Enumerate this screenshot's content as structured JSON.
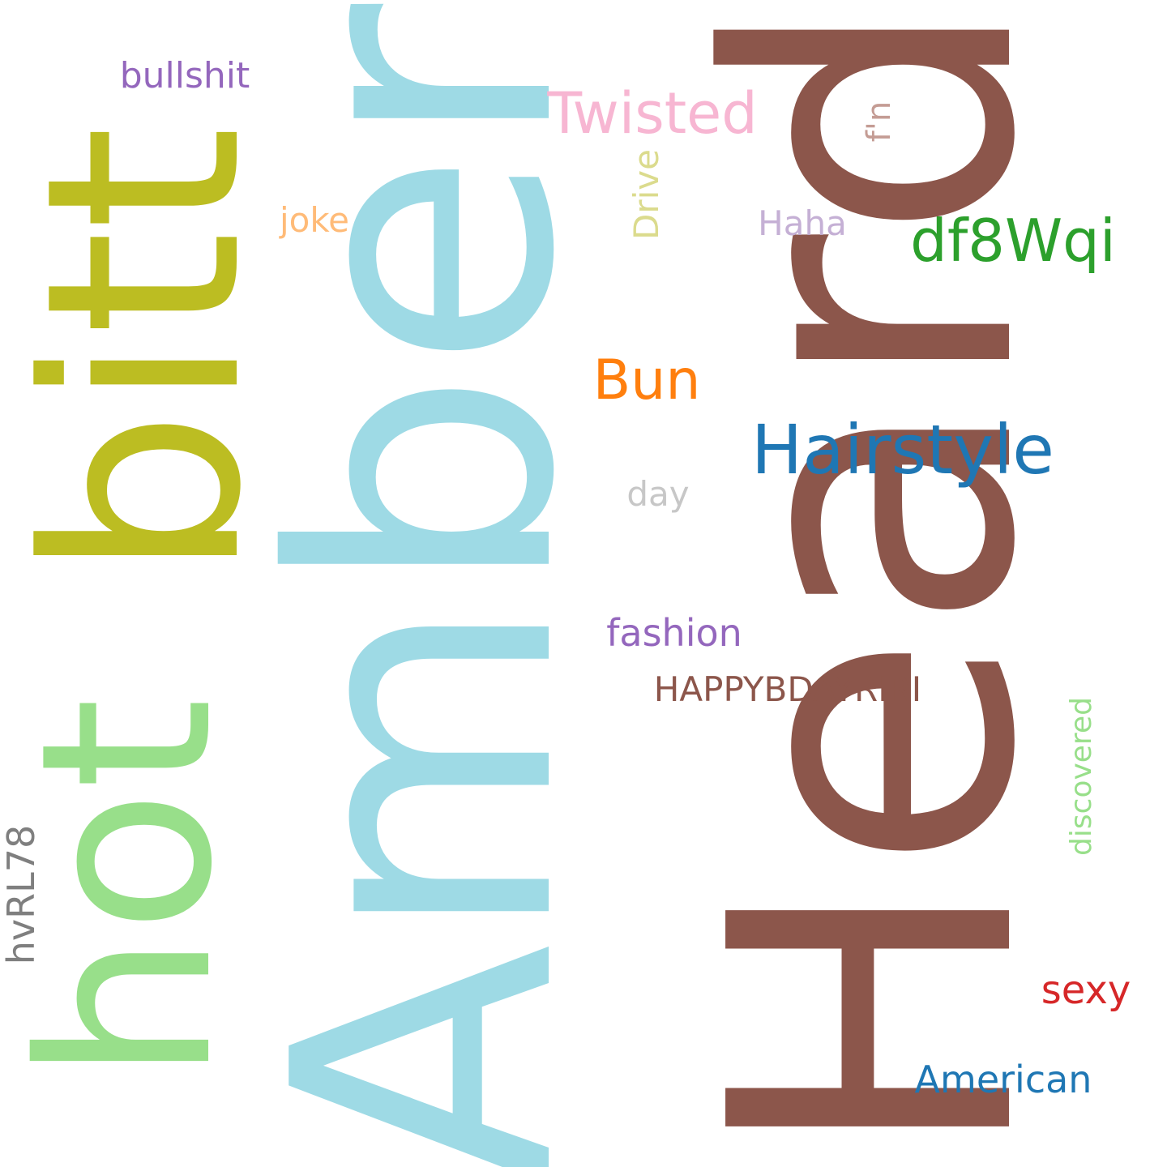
{
  "words": {
    "heard": {
      "text": "Heard",
      "color": "#8c564b"
    },
    "amber": {
      "text": "Amber",
      "color": "#9edae5"
    },
    "bitt": {
      "text": "bitt",
      "color": "#bcbd22"
    },
    "hot": {
      "text": "hot",
      "color": "#98df8a"
    },
    "hairstyle": {
      "text": "Hairstyle",
      "color": "#1f77b4"
    },
    "df8wqi": {
      "text": "df8Wqi",
      "color": "#2ca02c"
    },
    "twisted": {
      "text": "Twisted",
      "color": "#f7b6d2"
    },
    "bun": {
      "text": "Bun",
      "color": "#ff7f0e"
    },
    "bullshit": {
      "text": "bullshit",
      "color": "#9467bd"
    },
    "joke": {
      "text": "joke",
      "color": "#ffbb78"
    },
    "haha": {
      "text": "Haha",
      "color": "#c5b0d5"
    },
    "drive": {
      "text": "Drive",
      "color": "#dbdb8d"
    },
    "fn": {
      "text": "f'n",
      "color": "#c49c94"
    },
    "day": {
      "text": "day",
      "color": "#c7c7c7"
    },
    "fashion": {
      "text": "fashion",
      "color": "#9467bd"
    },
    "happy": {
      "text": "HAPPYBDAYRIRI",
      "color": "#8c564b"
    },
    "discovered": {
      "text": "discovered",
      "color": "#98df8a"
    },
    "hvrl78": {
      "text": "hvRL78",
      "color": "#7f7f7f"
    },
    "sexy": {
      "text": "sexy",
      "color": "#d62728"
    },
    "american": {
      "text": "American",
      "color": "#1f77b4"
    }
  }
}
